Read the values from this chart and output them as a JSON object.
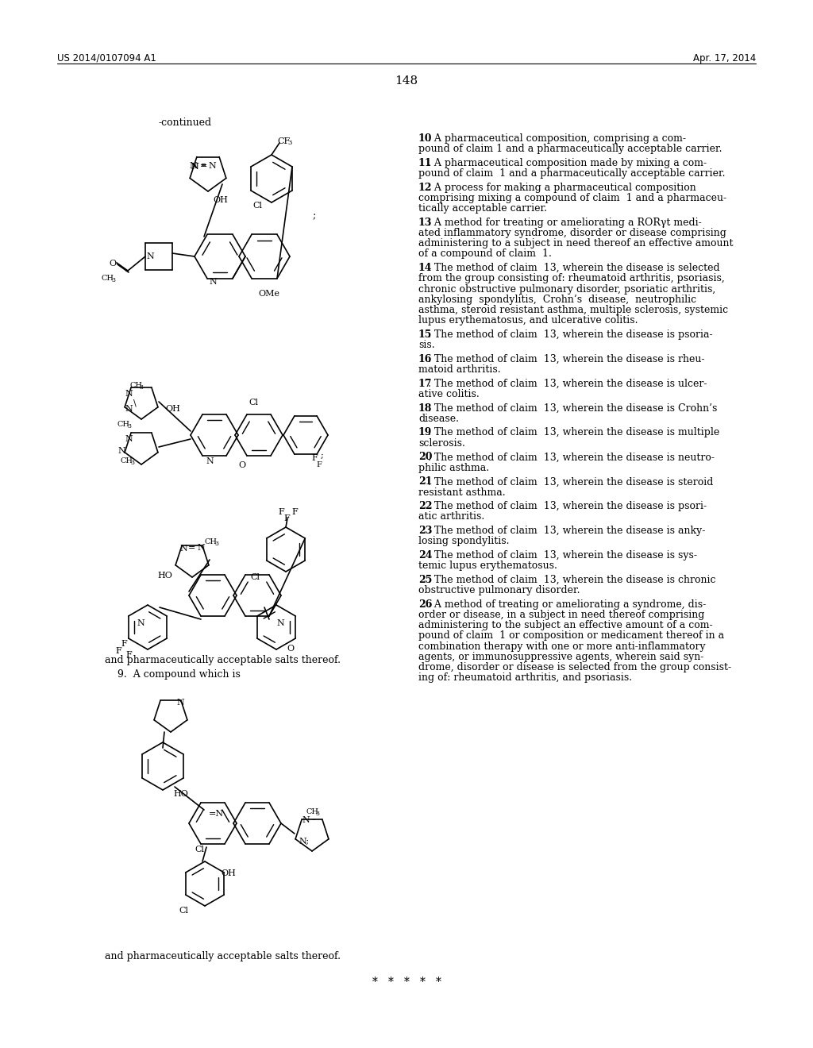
{
  "page_header_left": "US 2014/0107094 A1",
  "page_header_right": "Apr. 17, 2014",
  "page_number": "148",
  "left_label": "-continued",
  "left_footer1": "and pharmaceutically acceptable salts thereof.",
  "left_footer2": "    9.  A compound which is",
  "left_footer3": "and pharmaceutically acceptable salts thereof.",
  "right_paragraphs": [
    {
      "num": "10",
      "text": ". A pharmaceutical composition, comprising a com-\npound of claim 1 and a pharmaceutically acceptable carrier."
    },
    {
      "num": "11",
      "text": ". A pharmaceutical composition made by mixing a com-\npound of claim  1 and a pharmaceutically acceptable carrier."
    },
    {
      "num": "12",
      "text": ". A process for making a pharmaceutical composition\ncomprising mixing a compound of claim  1 and a pharmaceu-\ntically acceptable carrier."
    },
    {
      "num": "13",
      "text": ". A method for treating or ameliorating a RORγt medi-\nated inflammatory syndrome, disorder or disease comprising\nadministering to a subject in need thereof an effective amount\nof a compound of claim  1."
    },
    {
      "num": "14",
      "text": ". The method of claim  13, wherein the disease is selected\nfrom the group consisting of: rheumatoid arthritis, psoriasis,\nchronic obstructive pulmonary disorder, psoriatic arthritis,\nankylosing  spondylitis,  Crohn’s  disease,  neutrophilic\nasthma, steroid resistant asthma, multiple sclerosis, systemic\nlupus erythematosus, and ulcerative colitis."
    },
    {
      "num": "15",
      "text": ". The method of claim  13, wherein the disease is psoria-\nsis."
    },
    {
      "num": "16",
      "text": ". The method of claim  13, wherein the disease is rheu-\nmatoid arthritis."
    },
    {
      "num": "17",
      "text": ". The method of claim  13, wherein the disease is ulcer-\native colitis."
    },
    {
      "num": "18",
      "text": ". The method of claim  13, wherein the disease is Crohn’s\ndisease."
    },
    {
      "num": "19",
      "text": ". The method of claim  13, wherein the disease is multiple\nsclerosis."
    },
    {
      "num": "20",
      "text": ". The method of claim  13, wherein the disease is neutro-\nphilic asthma."
    },
    {
      "num": "21",
      "text": ". The method of claim  13, wherein the disease is steroid\nresistant asthma."
    },
    {
      "num": "22",
      "text": ". The method of claim  13, wherein the disease is psori-\natic arthritis."
    },
    {
      "num": "23",
      "text": ". The method of claim  13, wherein the disease is anky-\nlosing spondylitis."
    },
    {
      "num": "24",
      "text": ". The method of claim  13, wherein the disease is sys-\ntemic lupus erythematosus."
    },
    {
      "num": "25",
      "text": ". The method of claim  13, wherein the disease is chronic\nobstructive pulmonary disorder."
    },
    {
      "num": "26",
      "text": ". A method of treating or ameliorating a syndrome, dis-\norder or disease, in a subject in need thereof comprising\nadministering to the subject an effective amount of a com-\npound of claim  1 or composition or medicament thereof in a\ncombination therapy with one or more anti-inflammatory\nagents, or immunosuppressive agents, wherein said syn-\ndrome, disorder or disease is selected from the group consist-\ning of: rheumatoid arthritis, and psoriasis."
    }
  ],
  "footer_stars": "*   *   *   *   *"
}
